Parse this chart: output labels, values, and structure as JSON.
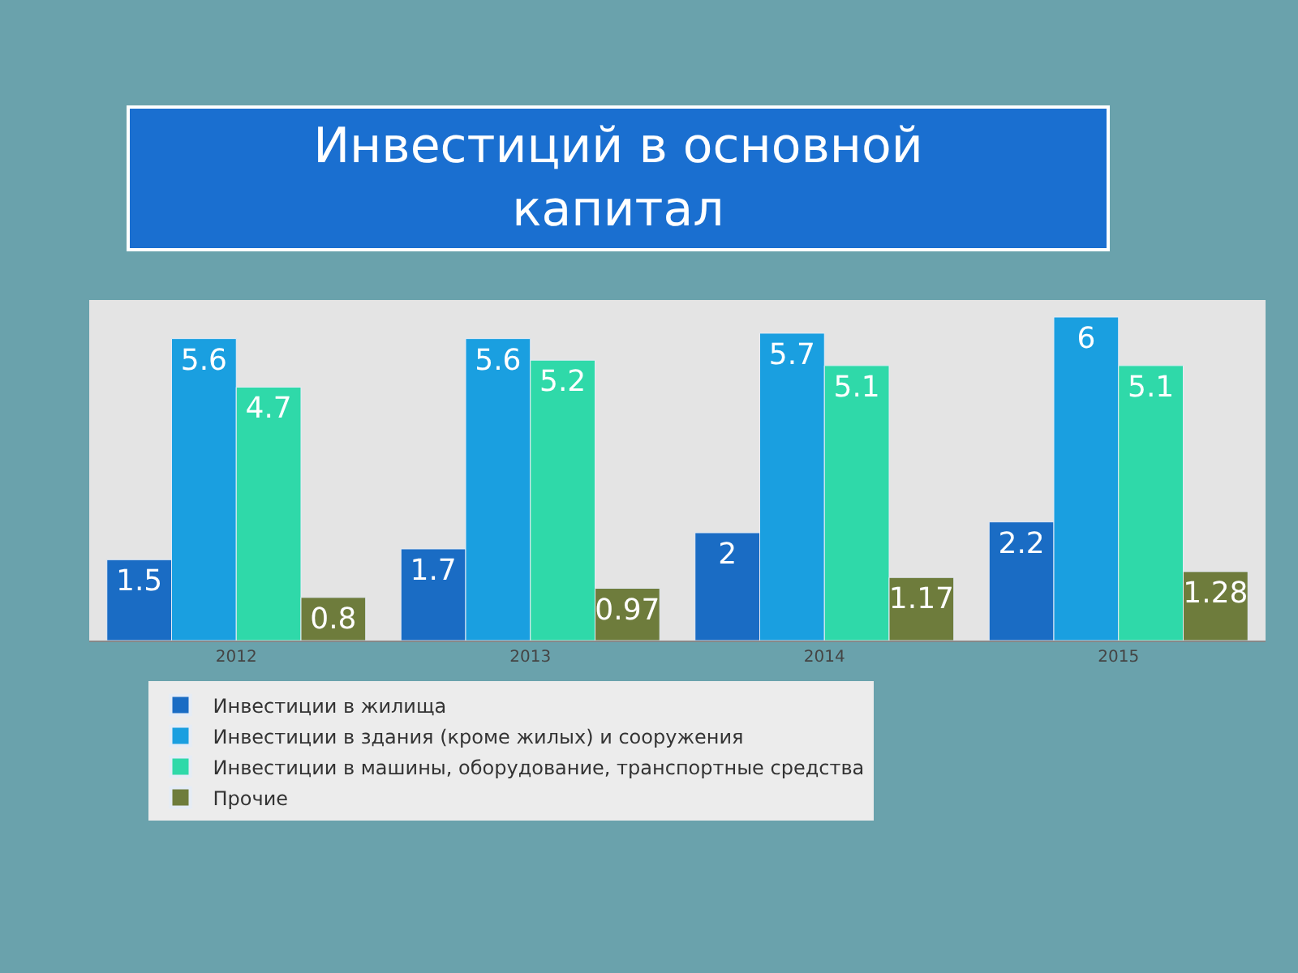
{
  "chart_data": {
    "type": "bar",
    "title": "Инвестиций в основной капитал",
    "categories": [
      "2012",
      "2013",
      "2014",
      "2015"
    ],
    "series": [
      {
        "name": "Инвестиции в жилища",
        "color": "#1a6cc4",
        "values": [
          1.5,
          1.7,
          2,
          2.2
        ]
      },
      {
        "name": "Инвестиции в здания (кроме жилых) и сооружения",
        "color": "#1a9fe0",
        "values": [
          5.6,
          5.6,
          5.7,
          6
        ]
      },
      {
        "name": "Инвестиции в машины, оборудование, транспортные средства",
        "color": "#2fd9a9",
        "values": [
          4.7,
          5.2,
          5.1,
          5.1
        ]
      },
      {
        "name": "Прочие",
        "color": "#6e7c3c",
        "values": [
          0.8,
          0.97,
          1.17,
          1.28
        ]
      }
    ],
    "data_labels": true,
    "legend": "bottom",
    "grid": false
  }
}
